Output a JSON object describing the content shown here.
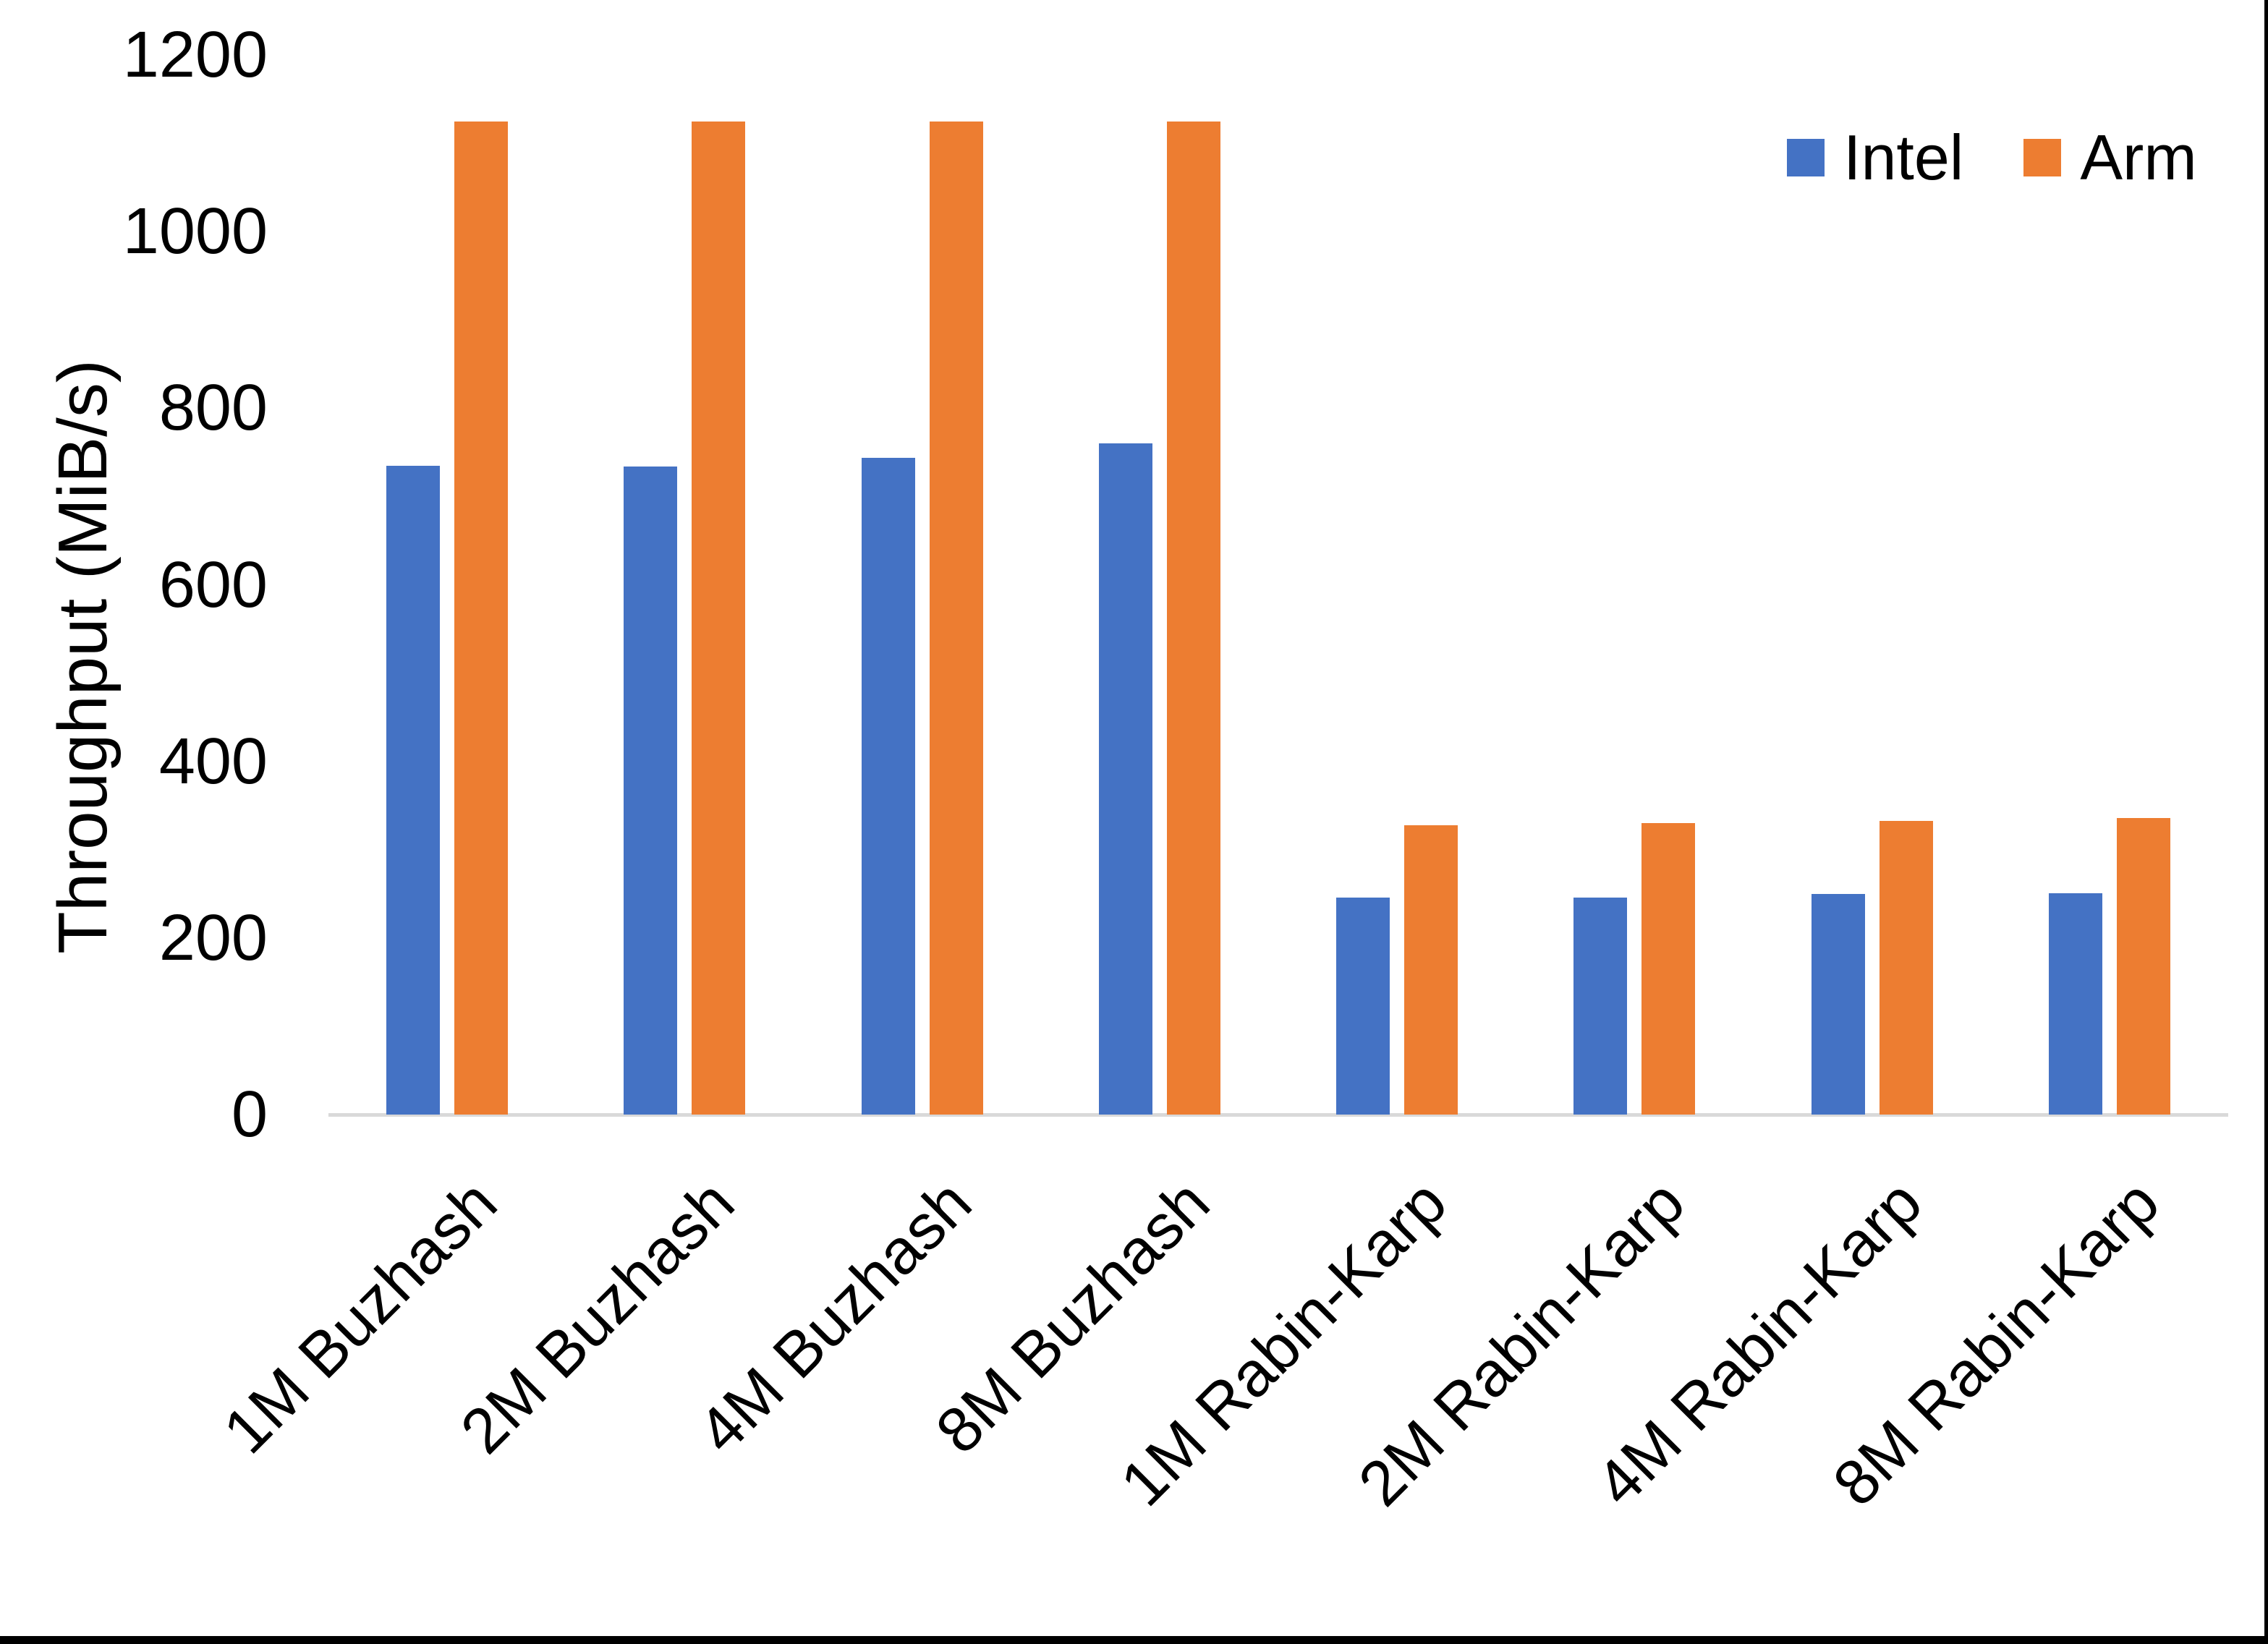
{
  "chart_data": {
    "type": "bar",
    "title": "",
    "xlabel": "",
    "ylabel": "Throughput (MiB/s)",
    "ylim": [
      0,
      1200
    ],
    "yticks": [
      0,
      200,
      400,
      600,
      800,
      1000,
      1200
    ],
    "grid": false,
    "legend_position": "top-right",
    "categories": [
      "1M Buzhash",
      "2M Buzhash",
      "4M Buzhash",
      "8M Buzhash",
      "1M Rabin-Karp",
      "2M Rabin-Karp",
      "4M Rabin-Karp",
      "8M Rabin-Karp"
    ],
    "series": [
      {
        "name": "Intel",
        "color": "#4472C4",
        "values": [
          735,
          734,
          744,
          760,
          246,
          246,
          250,
          251
        ]
      },
      {
        "name": "Arm",
        "color": "#ED7D31",
        "values": [
          1125,
          1125,
          1125,
          1125,
          328,
          330,
          333,
          336
        ]
      }
    ],
    "axis_line_color": "#D9D9D9",
    "text_color": "#000000"
  }
}
